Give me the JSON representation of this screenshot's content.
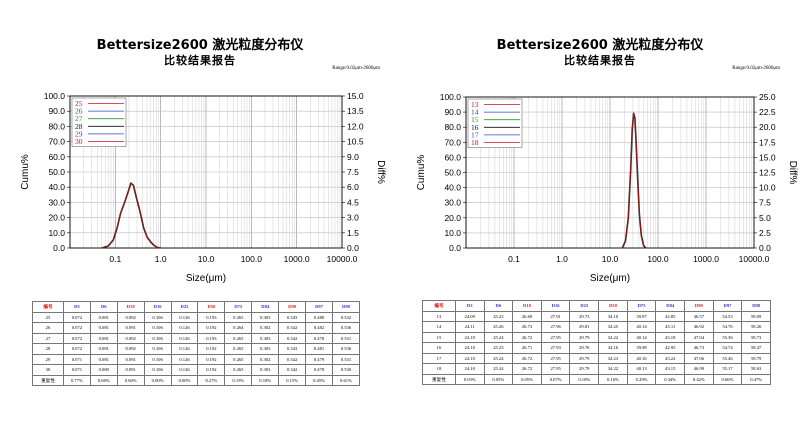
{
  "reports": [
    {
      "title": "Bettersize2600 激光粒度分布仪",
      "subtitle": "比较结果报告",
      "range_text": "Range:0.02μm-2600μm",
      "chart_data": {
        "type": "line",
        "xscale": "log",
        "xlim": [
          0.01,
          10000
        ],
        "x_ticks": [
          "0.1",
          "1.0",
          "10.0",
          "100.0",
          "1000.0",
          "10000.0"
        ],
        "xlabel": "Size(μm)",
        "ylabel_left": "Cumu%",
        "ylabel_right": "Diff%",
        "y_left_ticks": [
          "0.0",
          "10.0",
          "20.0",
          "30.0",
          "40.0",
          "50.0",
          "60.0",
          "70.0",
          "80.0",
          "90.0",
          "100.0"
        ],
        "y_right_ticks": [
          "0.0",
          "1.5",
          "3.0",
          "4.5",
          "6.0",
          "7.5",
          "9.0",
          "10.5",
          "12.0",
          "13.5",
          "15.0"
        ],
        "ylim_left": [
          0,
          100
        ],
        "ylim_right": [
          0,
          15
        ],
        "grid": true,
        "legend": {
          "placement": "top-left",
          "entries": [
            "25",
            "26",
            "27",
            "28",
            "29",
            "30"
          ]
        },
        "legend_colors": [
          "#c8102e",
          "#3445c8",
          "#20a020",
          "#111111",
          "#3445c8",
          "#c8102e"
        ],
        "diff_curve": {
          "x": [
            0.05,
            0.07,
            0.09,
            0.11,
            0.13,
            0.16,
            0.19,
            0.22,
            0.25,
            0.29,
            0.35,
            0.42,
            0.5,
            0.6,
            0.72,
            0.85,
            1.0
          ],
          "y": [
            0.0,
            0.2,
            0.8,
            2.0,
            3.4,
            4.5,
            5.5,
            6.4,
            6.2,
            5.0,
            3.6,
            2.0,
            1.1,
            0.6,
            0.25,
            0.05,
            0.0
          ]
        }
      },
      "table": {
        "headers": [
          "编号",
          "D3",
          "D6",
          "D10",
          "D16",
          "D25",
          "D50",
          "D75",
          "D84",
          "D90",
          "D97",
          "D98"
        ],
        "red_headers": [
          "编号",
          "D10",
          "D50",
          "D90"
        ],
        "rows": [
          [
            "25",
            "0.072",
            "0.081",
            "0.092",
            "0.106",
            "0.126",
            "0.193",
            "0.265",
            "0.303",
            "0.343",
            "0.480",
            "0.532"
          ],
          [
            "26",
            "0.072",
            "0.081",
            "0.091",
            "0.106",
            "0.126",
            "0.192",
            "0.264",
            "0.302",
            "0.342",
            "0.482",
            "0.536"
          ],
          [
            "27",
            "0.072",
            "0.081",
            "0.092",
            "0.106",
            "0.126",
            "0.193",
            "0.265",
            "0.303",
            "0.342",
            "0.478",
            "0.531"
          ],
          [
            "28",
            "0.072",
            "0.081",
            "0.092",
            "0.106",
            "0.126",
            "0.192",
            "0.265",
            "0.303",
            "0.343",
            "0.481",
            "0.536"
          ],
          [
            "29",
            "0.071",
            "0.081",
            "0.091",
            "0.106",
            "0.126",
            "0.192",
            "0.265",
            "0.302",
            "0.342",
            "0.479",
            "0.531"
          ],
          [
            "30",
            "0.071",
            "0.080",
            "0.091",
            "0.106",
            "0.126",
            "0.192",
            "0.265",
            "0.303",
            "0.342",
            "0.478",
            "0.530"
          ],
          [
            "重复性",
            "0.77%",
            "0.60%",
            "0.60%",
            "0.00%",
            "0.00%",
            "0.27%",
            "0.15%",
            "0.18%",
            "0.15%",
            "0.45%",
            "0.61%"
          ]
        ]
      }
    },
    {
      "title": "Bettersize2600 激光粒度分布仪",
      "subtitle": "比较结果报告",
      "range_text": "Range:0.02μm-2600μm",
      "chart_data": {
        "type": "line",
        "xscale": "log",
        "xlim": [
          0.01,
          10000
        ],
        "x_ticks": [
          "0.1",
          "1.0",
          "10.0",
          "100.0",
          "1000.0",
          "10000.0"
        ],
        "xlabel": "Size(μm)",
        "ylabel_left": "Cumu%",
        "ylabel_right": "Diff%",
        "y_left_ticks": [
          "0.0",
          "10.0",
          "20.0",
          "30.0",
          "40.0",
          "50.0",
          "60.0",
          "70.0",
          "80.0",
          "90.0",
          "100.0"
        ],
        "y_right_ticks": [
          "0.0",
          "2.5",
          "5.0",
          "7.5",
          "10.0",
          "12.5",
          "15.0",
          "17.5",
          "20.0",
          "22.5",
          "25.0"
        ],
        "ylim_left": [
          0,
          100
        ],
        "ylim_right": [
          0,
          25
        ],
        "grid": true,
        "legend": {
          "placement": "top-left",
          "entries": [
            "13",
            "14",
            "15",
            "16",
            "17",
            "18"
          ]
        },
        "legend_colors": [
          "#c8102e",
          "#3445c8",
          "#20a020",
          "#111111",
          "#3445c8",
          "#c8102e"
        ],
        "diff_curve": {
          "x": [
            18,
            21,
            24,
            27,
            29,
            31,
            33,
            35,
            38,
            41,
            45,
            50,
            56
          ],
          "y": [
            0.0,
            1.2,
            5.0,
            13.0,
            19.5,
            22.3,
            21.5,
            17.5,
            11.0,
            5.5,
            2.0,
            0.4,
            0.0
          ]
        }
      },
      "table": {
        "headers": [
          "编号",
          "D3",
          "D6",
          "D10",
          "D16",
          "D25",
          "D50",
          "D75",
          "D84",
          "D90",
          "D97",
          "D98"
        ],
        "red_headers": [
          "编号",
          "D10",
          "D50",
          "D90"
        ],
        "rows": [
          [
            "13",
            "24.09",
            "25.22",
            "26.69",
            "27.91",
            "29.73",
            "34.10",
            "39.87",
            "42.85",
            "46.57",
            "54.53",
            "58.09"
          ],
          [
            "14",
            "24.11",
            "25.26",
            "26.73",
            "27.96",
            "29.81",
            "34.25",
            "40.14",
            "43.11",
            "46.92",
            "54.76",
            "58.26"
          ],
          [
            "15",
            "24.10",
            "25.24",
            "26.72",
            "27.95",
            "29.79",
            "34.22",
            "40.14",
            "43.18",
            "47.04",
            "55.36",
            "58.73"
          ],
          [
            "16",
            "24.10",
            "25.23",
            "26.71",
            "27.93",
            "29.76",
            "34.16",
            "39.98",
            "42.95",
            "46.73",
            "54.74",
            "58.47"
          ],
          [
            "17",
            "24.10",
            "25.24",
            "26.72",
            "27.95",
            "29.79",
            "34.23",
            "40.16",
            "43.22",
            "47.06",
            "55.46",
            "58.79"
          ],
          [
            "18",
            "24.10",
            "25.24",
            "26.72",
            "27.95",
            "29.79",
            "34.22",
            "40.13",
            "43.15",
            "46.99",
            "55.17",
            "58.63"
          ],
          [
            "重复性",
            "0.03%",
            "0.05%",
            "0.05%",
            "0.07%",
            "0.10%",
            "0.16%",
            "0.29%",
            "0.34%",
            "0.42%",
            "0.66%",
            "0.47%"
          ]
        ]
      }
    }
  ]
}
